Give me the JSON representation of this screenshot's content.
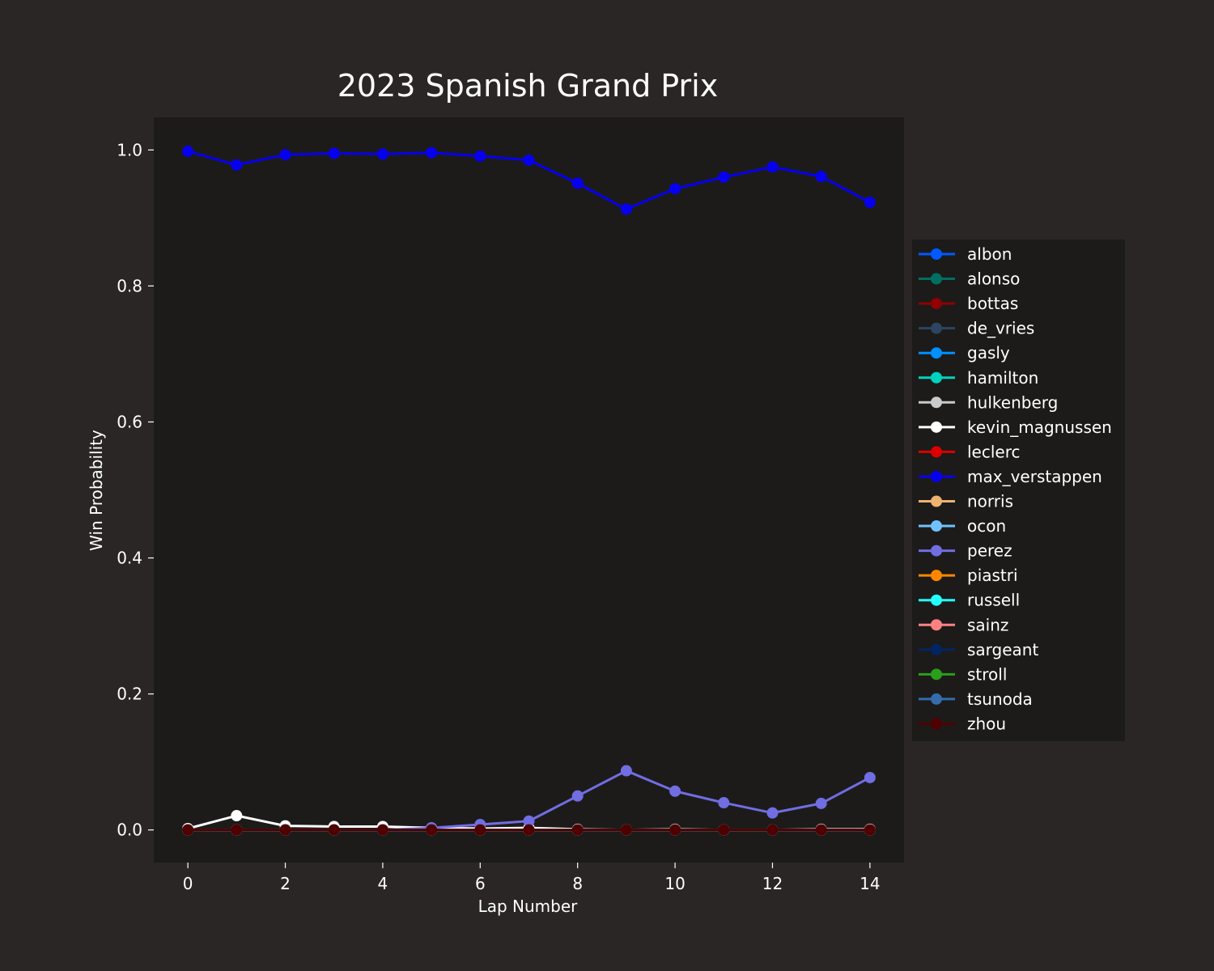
{
  "chart_data": {
    "type": "line",
    "title": "2023 Spanish Grand Prix",
    "xlabel": "Lap Number",
    "ylabel": "Win Probability",
    "xlim": [
      -0.7,
      14.7
    ],
    "ylim": [
      -0.048,
      1.048
    ],
    "xticks": [
      0,
      2,
      4,
      6,
      8,
      10,
      12,
      14
    ],
    "yticks": [
      0.0,
      0.2,
      0.4,
      0.6,
      0.8,
      1.0
    ],
    "ytick_labels": [
      "0.0",
      "0.2",
      "0.4",
      "0.6",
      "0.8",
      "1.0"
    ],
    "grid": false,
    "legend_position": "right",
    "x": [
      0,
      1,
      2,
      3,
      4,
      5,
      6,
      7,
      8,
      9,
      10,
      11,
      12,
      13,
      14
    ],
    "colors": {
      "figure_background": "#2a2625",
      "plot_background": "#1c1b1a",
      "text": "#ffffff"
    },
    "series": [
      {
        "name": "albon",
        "color": "#005aff",
        "values": [
          0,
          0,
          0,
          0,
          0,
          0,
          0,
          0,
          0,
          0,
          0,
          0,
          0,
          0,
          0
        ]
      },
      {
        "name": "alonso",
        "color": "#006f62",
        "values": [
          0,
          0,
          0,
          0,
          0,
          0,
          0,
          0,
          0,
          0,
          0,
          0,
          0,
          0,
          0
        ]
      },
      {
        "name": "bottas",
        "color": "#900000",
        "values": [
          0,
          0,
          0,
          0,
          0,
          0,
          0,
          0,
          0,
          0,
          0,
          0,
          0,
          0,
          0
        ]
      },
      {
        "name": "de_vries",
        "color": "#2b4562",
        "values": [
          0,
          0,
          0,
          0,
          0,
          0,
          0,
          0,
          0,
          0,
          0,
          0,
          0,
          0,
          0
        ]
      },
      {
        "name": "gasly",
        "color": "#0090ff",
        "values": [
          0,
          0,
          0,
          0,
          0,
          0,
          0,
          0,
          0,
          0,
          0,
          0,
          0,
          0,
          0
        ]
      },
      {
        "name": "hamilton",
        "color": "#00d2be",
        "values": [
          0,
          0,
          0,
          0,
          0,
          0,
          0,
          0,
          0,
          0,
          0,
          0,
          0,
          0,
          0
        ]
      },
      {
        "name": "hulkenberg",
        "color": "#cacaca",
        "values": [
          0,
          0,
          0,
          0,
          0,
          0,
          0,
          0,
          0,
          0,
          0,
          0,
          0,
          0,
          0
        ]
      },
      {
        "name": "kevin_magnussen",
        "color": "#ffffff",
        "values": [
          0.002,
          0.021,
          0.006,
          0.005,
          0.005,
          0.003,
          0.002,
          0.003,
          0.001,
          0,
          0.001,
          0,
          0,
          0.001,
          0.001
        ]
      },
      {
        "name": "leclerc",
        "color": "#dc0000",
        "values": [
          0,
          0,
          0,
          0,
          0,
          0,
          0,
          0,
          0,
          0,
          0,
          0,
          0,
          0,
          0
        ]
      },
      {
        "name": "max_verstappen",
        "color": "#0600ef",
        "values": [
          0.998,
          0.978,
          0.993,
          0.995,
          0.994,
          0.996,
          0.991,
          0.985,
          0.951,
          0.913,
          0.943,
          0.96,
          0.975,
          0.961,
          0.923
        ]
      },
      {
        "name": "norris",
        "color": "#eeb370",
        "values": [
          0,
          0,
          0,
          0,
          0,
          0,
          0,
          0,
          0,
          0,
          0,
          0,
          0,
          0,
          0
        ]
      },
      {
        "name": "ocon",
        "color": "#70c2ff",
        "values": [
          0,
          0,
          0,
          0,
          0,
          0,
          0,
          0,
          0,
          0,
          0,
          0,
          0,
          0,
          0
        ]
      },
      {
        "name": "perez",
        "color": "#716de2",
        "values": [
          0,
          0,
          0,
          0,
          0,
          0.003,
          0.008,
          0.013,
          0.05,
          0.087,
          0.057,
          0.04,
          0.025,
          0.039,
          0.077
        ]
      },
      {
        "name": "piastri",
        "color": "#ff8700",
        "values": [
          0,
          0,
          0,
          0,
          0,
          0,
          0,
          0,
          0,
          0,
          0,
          0,
          0,
          0,
          0
        ]
      },
      {
        "name": "russell",
        "color": "#24ffff",
        "values": [
          0,
          0,
          0,
          0,
          0,
          0,
          0,
          0,
          0,
          0,
          0,
          0,
          0,
          0,
          0
        ]
      },
      {
        "name": "sainz",
        "color": "#ff8181",
        "values": [
          0,
          0,
          0,
          0,
          0,
          0,
          0,
          0,
          0,
          0,
          0,
          0,
          0,
          0,
          0
        ]
      },
      {
        "name": "sargeant",
        "color": "#012564",
        "values": [
          0,
          0,
          0,
          0,
          0,
          0,
          0,
          0,
          0,
          0,
          0,
          0,
          0,
          0,
          0
        ]
      },
      {
        "name": "stroll",
        "color": "#2b9e1a",
        "values": [
          0,
          0,
          0,
          0,
          0,
          0,
          0,
          0,
          0,
          0,
          0,
          0,
          0,
          0,
          0
        ]
      },
      {
        "name": "tsunoda",
        "color": "#356cac",
        "values": [
          0,
          0,
          0,
          0,
          0,
          0,
          0,
          0,
          0,
          0,
          0,
          0,
          0,
          0,
          0
        ]
      },
      {
        "name": "zhou",
        "color": "#500000",
        "values": [
          0,
          0,
          0,
          0,
          0,
          0,
          0,
          0,
          0,
          0,
          0,
          0,
          0,
          0,
          0
        ]
      }
    ]
  }
}
